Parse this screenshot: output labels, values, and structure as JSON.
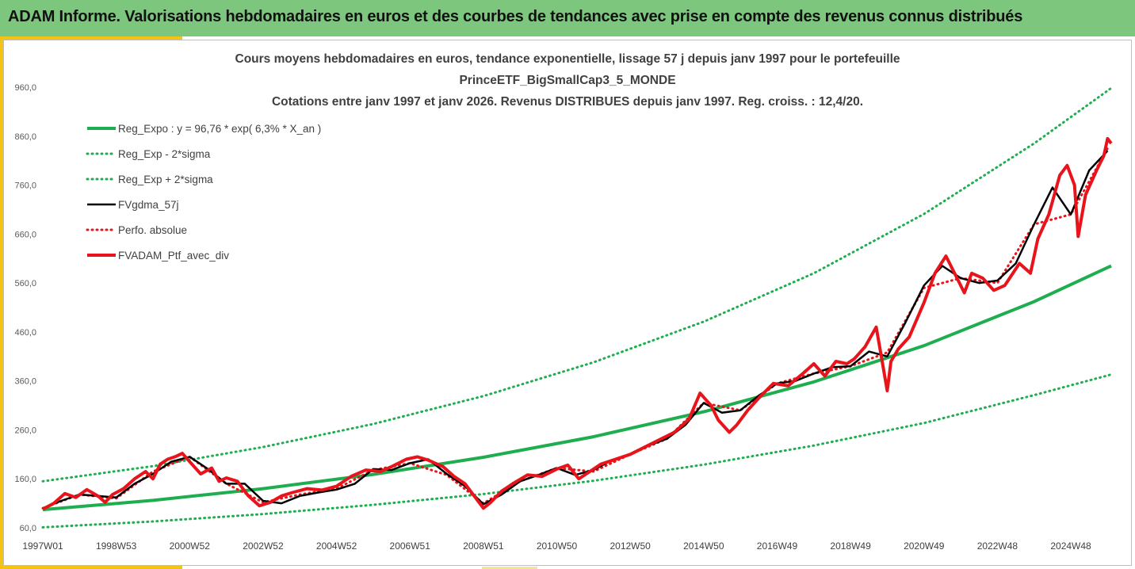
{
  "banner": {
    "title": "ADAM Informe. Valorisations hebdomadaires en euros et des courbes de tendances avec prise en compte des revenus connus distribués"
  },
  "colors": {
    "banner_bg": "#7dc67d",
    "accent": "#f3c413",
    "trend": "#1fae4f",
    "smoothed": "#000000",
    "portfolio": "#e8141b"
  },
  "chart_data": {
    "type": "line",
    "title": [
      "Cours moyens hebdomadaires  en euros, tendance exponentielle, lissage 57 j depuis janv 1997 pour le portefeuille",
      "PrinceETF_BigSmallCap3_5_MONDE",
      "Cotations entre janv 1997 et janv 2026. Revenus DISTRIBUES depuis janv 1997. Reg. croiss. : 12,4/20."
    ],
    "xlabel": "",
    "ylabel": "",
    "ylim": [
      60,
      960
    ],
    "yticks": [
      "960,0",
      "860,0",
      "760,0",
      "660,0",
      "560,0",
      "460,0",
      "360,0",
      "260,0",
      "160,0",
      "60,0"
    ],
    "ytick_values": [
      960,
      860,
      760,
      660,
      560,
      460,
      360,
      260,
      160,
      60
    ],
    "xlim": [
      1997.0,
      2026.1
    ],
    "xticks": [
      "1997W01",
      "1998W53",
      "2000W52",
      "2002W52",
      "2004W52",
      "2006W51",
      "2008W51",
      "2010W50",
      "2012W50",
      "2014W50",
      "2016W49",
      "2018W49",
      "2020W49",
      "2022W48",
      "2024W48"
    ],
    "xtick_positions": [
      1997.0,
      1999.0,
      2001.0,
      2003.0,
      2005.0,
      2007.0,
      2009.0,
      2011.0,
      2013.0,
      2015.0,
      2017.0,
      2019.0,
      2021.0,
      2023.0,
      2025.0
    ],
    "grid": false,
    "legend_position": "top-left",
    "series": [
      {
        "name": "Reg_Expo : y = 96,76 * exp( 6,3% *  X_an )",
        "style": "solid-thick",
        "color": "#1fae4f",
        "x": [
          1997.0,
          2000.0,
          2003.0,
          2006.0,
          2009.0,
          2012.0,
          2015.0,
          2018.0,
          2021.0,
          2024.0,
          2026.1
        ],
        "y": [
          97,
          116,
          140,
          169,
          204,
          246,
          297,
          358,
          432,
          522,
          595
        ]
      },
      {
        "name": "Reg_Exp - 2*sigma",
        "style": "dotted",
        "color": "#1fae4f",
        "x": [
          1997.0,
          2000.0,
          2003.0,
          2006.0,
          2009.0,
          2012.0,
          2015.0,
          2018.0,
          2021.0,
          2024.0,
          2026.1
        ],
        "y": [
          61,
          73,
          88,
          107,
          129,
          156,
          189,
          228,
          274,
          331,
          373
        ]
      },
      {
        "name": "Reg_Exp + 2*sigma",
        "style": "dotted",
        "color": "#1fae4f",
        "x": [
          1997.0,
          2000.0,
          2003.0,
          2006.0,
          2009.0,
          2012.0,
          2015.0,
          2018.0,
          2021.0,
          2024.0,
          2026.1
        ],
        "y": [
          155,
          186,
          225,
          272,
          329,
          398,
          481,
          580,
          701,
          845,
          958
        ]
      },
      {
        "name": "FVgdma_57j",
        "style": "solid",
        "color": "#000000",
        "x": [
          1997.0,
          1997.5,
          1998.0,
          1998.5,
          1999.0,
          1999.5,
          2000.0,
          2000.5,
          2001.0,
          2001.5,
          2002.0,
          2002.5,
          2003.0,
          2003.5,
          2004.0,
          2004.5,
          2005.0,
          2005.5,
          2006.0,
          2006.5,
          2007.0,
          2007.5,
          2008.0,
          2008.5,
          2009.0,
          2009.5,
          2010.0,
          2010.5,
          2011.0,
          2011.5,
          2012.0,
          2012.5,
          2013.0,
          2013.5,
          2014.0,
          2014.5,
          2015.0,
          2015.5,
          2016.0,
          2016.5,
          2017.0,
          2017.5,
          2018.0,
          2018.5,
          2019.0,
          2019.5,
          2020.0,
          2020.5,
          2021.0,
          2021.5,
          2022.0,
          2022.5,
          2023.0,
          2023.5,
          2024.0,
          2024.5,
          2025.0,
          2025.5,
          2026.0
        ],
        "y": [
          100,
          115,
          128,
          125,
          122,
          150,
          170,
          195,
          205,
          180,
          150,
          150,
          115,
          110,
          125,
          132,
          138,
          150,
          180,
          178,
          192,
          200,
          170,
          145,
          108,
          128,
          155,
          168,
          182,
          168,
          178,
          198,
          210,
          228,
          242,
          270,
          315,
          295,
          300,
          330,
          355,
          360,
          375,
          388,
          390,
          420,
          410,
          480,
          555,
          595,
          570,
          560,
          565,
          600,
          680,
          755,
          700,
          790,
          830
        ]
      },
      {
        "name": "Perfo. absolue",
        "style": "dotted",
        "color": "#e8141b",
        "x": [
          1997.0,
          1998.0,
          1999.0,
          2000.0,
          2001.0,
          2002.0,
          2003.0,
          2004.0,
          2005.0,
          2006.0,
          2007.0,
          2008.0,
          2009.0,
          2010.0,
          2011.0,
          2012.0,
          2013.0,
          2014.0,
          2015.0,
          2016.0,
          2017.0,
          2018.0,
          2019.0,
          2020.0,
          2021.0,
          2022.0,
          2023.0,
          2024.0,
          2025.0,
          2026.0
        ],
        "y": [
          100,
          128,
          120,
          175,
          205,
          150,
          112,
          128,
          140,
          178,
          192,
          168,
          110,
          155,
          182,
          175,
          210,
          242,
          315,
          300,
          355,
          375,
          390,
          418,
          550,
          570,
          560,
          680,
          700,
          835
        ]
      },
      {
        "name": "FVADAM_Ptf_avec_div",
        "style": "solid-thick",
        "color": "#e8141b",
        "x": [
          1997.0,
          1997.3,
          1997.6,
          1997.9,
          1998.2,
          1998.5,
          1998.7,
          1998.9,
          1999.2,
          1999.5,
          1999.8,
          2000.0,
          2000.2,
          2000.4,
          2000.6,
          2000.8,
          2001.0,
          2001.3,
          2001.6,
          2001.8,
          2002.0,
          2002.3,
          2002.6,
          2002.9,
          2003.2,
          2003.5,
          2003.8,
          2004.2,
          2004.6,
          2005.0,
          2005.4,
          2005.8,
          2006.2,
          2006.5,
          2006.9,
          2007.2,
          2007.5,
          2007.9,
          2008.2,
          2008.5,
          2008.8,
          2009.0,
          2009.2,
          2009.5,
          2009.8,
          2010.2,
          2010.6,
          2011.0,
          2011.3,
          2011.6,
          2011.9,
          2012.2,
          2012.6,
          2013.0,
          2013.4,
          2013.8,
          2014.2,
          2014.6,
          2014.9,
          2015.2,
          2015.4,
          2015.7,
          2015.9,
          2016.2,
          2016.5,
          2016.9,
          2017.3,
          2017.7,
          2018.0,
          2018.3,
          2018.6,
          2018.9,
          2019.1,
          2019.4,
          2019.7,
          2020.0,
          2020.1,
          2020.3,
          2020.6,
          2021.0,
          2021.3,
          2021.6,
          2021.9,
          2022.1,
          2022.3,
          2022.6,
          2022.9,
          2023.2,
          2023.6,
          2023.9,
          2024.1,
          2024.4,
          2024.7,
          2024.9,
          2025.1,
          2025.2,
          2025.4,
          2025.7,
          2025.9,
          2026.0,
          2026.1
        ],
        "y": [
          98,
          110,
          130,
          122,
          138,
          125,
          112,
          128,
          140,
          160,
          175,
          160,
          190,
          200,
          205,
          212,
          195,
          170,
          182,
          155,
          162,
          155,
          125,
          105,
          112,
          125,
          132,
          140,
          137,
          145,
          165,
          178,
          175,
          185,
          200,
          205,
          198,
          185,
          165,
          150,
          120,
          100,
          112,
          135,
          150,
          168,
          165,
          180,
          188,
          160,
          175,
          190,
          200,
          210,
          225,
          240,
          255,
          282,
          335,
          310,
          280,
          255,
          270,
          300,
          325,
          355,
          350,
          375,
          395,
          370,
          400,
          395,
          405,
          430,
          470,
          340,
          400,
          425,
          450,
          520,
          580,
          615,
          570,
          540,
          580,
          570,
          545,
          555,
          600,
          580,
          650,
          700,
          780,
          800,
          760,
          655,
          740,
          790,
          820,
          855,
          845
        ]
      }
    ]
  }
}
